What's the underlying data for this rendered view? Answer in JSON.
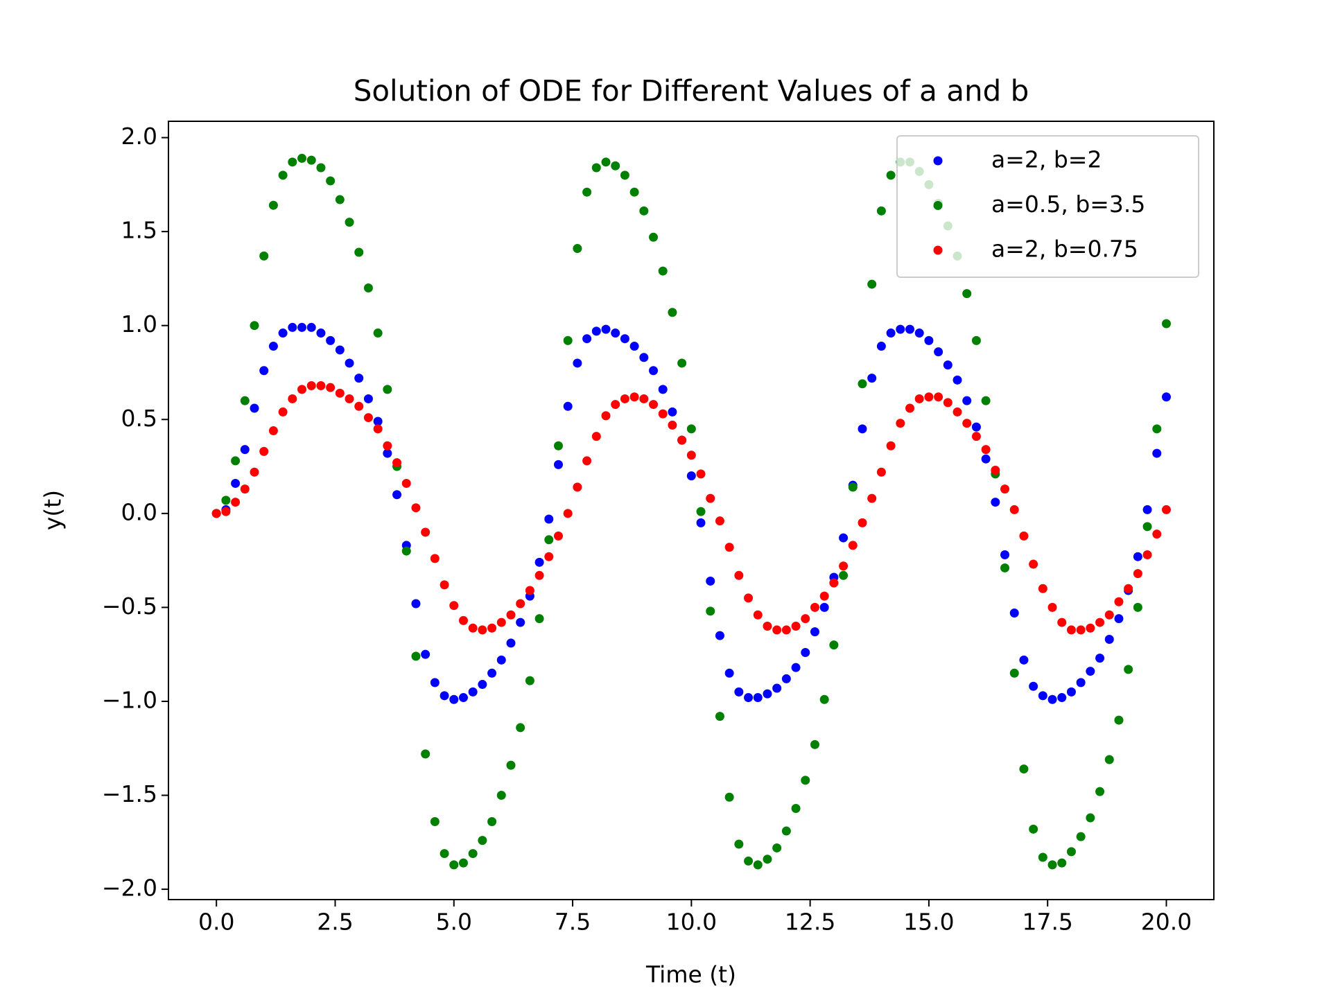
{
  "chart_data": {
    "type": "scatter",
    "title": "Solution of ODE for Different Values of a and b",
    "x_label": "Time (t)",
    "y_label": "y(t)",
    "x": [
      0,
      0.2,
      0.4,
      0.6,
      0.8,
      1.0,
      1.2,
      1.4,
      1.6,
      1.8,
      2.0,
      2.2,
      2.4,
      2.6,
      2.8,
      3.0,
      3.2,
      3.4,
      3.6,
      3.8,
      4.0,
      4.2,
      4.4,
      4.6,
      4.8,
      5.0,
      5.2,
      5.4,
      5.6,
      5.8,
      6.0,
      6.2,
      6.4,
      6.6,
      6.8,
      7.0,
      7.2,
      7.4,
      7.6,
      7.8,
      8.0,
      8.2,
      8.4,
      8.6,
      8.8,
      9.0,
      9.2,
      9.4,
      9.6,
      9.8,
      10.0,
      10.2,
      10.4,
      10.6,
      10.8,
      11.0,
      11.2,
      11.4,
      11.6,
      11.8,
      12.0,
      12.2,
      12.4,
      12.6,
      12.8,
      13.0,
      13.2,
      13.4,
      13.6,
      13.8,
      14.0,
      14.2,
      14.4,
      14.6,
      14.8,
      15.0,
      15.2,
      15.4,
      15.6,
      15.8,
      16.0,
      16.2,
      16.4,
      16.6,
      16.8,
      17.0,
      17.2,
      17.4,
      17.6,
      17.8,
      18.0,
      18.2,
      18.4,
      18.6,
      18.8,
      19.0,
      19.2,
      19.4,
      19.6,
      19.8,
      20.0
    ],
    "series": [
      {
        "name": "a=2, b=2",
        "color": "blue",
        "values": [
          0,
          0.02,
          0.16,
          0.34,
          0.56,
          0.76,
          0.89,
          0.96,
          0.99,
          0.99,
          0.99,
          0.96,
          0.92,
          0.87,
          0.8,
          0.72,
          0.61,
          0.49,
          0.32,
          0.1,
          -0.17,
          -0.48,
          -0.75,
          -0.9,
          -0.97,
          -0.99,
          -0.98,
          -0.95,
          -0.91,
          -0.85,
          -0.78,
          -0.69,
          -0.58,
          -0.44,
          -0.26,
          -0.03,
          0.26,
          0.57,
          0.8,
          0.93,
          0.97,
          0.98,
          0.96,
          0.93,
          0.89,
          0.83,
          0.76,
          0.66,
          0.54,
          0.39,
          0.2,
          -0.05,
          -0.36,
          -0.65,
          -0.85,
          -0.95,
          -0.98,
          -0.98,
          -0.96,
          -0.93,
          -0.88,
          -0.82,
          -0.74,
          -0.63,
          -0.5,
          -0.34,
          -0.13,
          0.15,
          0.45,
          0.72,
          0.89,
          0.96,
          0.98,
          0.98,
          0.96,
          0.92,
          0.86,
          0.79,
          0.71,
          0.6,
          0.46,
          0.29,
          0.06,
          -0.22,
          -0.53,
          -0.78,
          -0.92,
          -0.97,
          -0.99,
          -0.98,
          -0.95,
          -0.9,
          -0.84,
          -0.77,
          -0.67,
          -0.56,
          -0.41,
          -0.23,
          0.02,
          0.32,
          0.62
        ]
      },
      {
        "name": "a=0.5, b=3.5",
        "color": "green",
        "values": [
          0,
          0.07,
          0.28,
          0.6,
          1.0,
          1.37,
          1.64,
          1.8,
          1.87,
          1.89,
          1.88,
          1.84,
          1.77,
          1.67,
          1.55,
          1.39,
          1.2,
          0.96,
          0.66,
          0.25,
          -0.2,
          -0.76,
          -1.28,
          -1.64,
          -1.81,
          -1.87,
          -1.86,
          -1.81,
          -1.74,
          -1.64,
          -1.5,
          -1.34,
          -1.14,
          -0.89,
          -0.56,
          -0.14,
          0.36,
          0.92,
          1.41,
          1.71,
          1.84,
          1.87,
          1.85,
          1.8,
          1.71,
          1.61,
          1.47,
          1.29,
          1.07,
          0.8,
          0.45,
          0.01,
          -0.52,
          -1.08,
          -1.51,
          -1.76,
          -1.85,
          -1.87,
          -1.84,
          -1.78,
          -1.69,
          -1.57,
          -1.42,
          -1.23,
          -0.99,
          -0.7,
          -0.33,
          0.14,
          0.69,
          1.22,
          1.61,
          1.8,
          1.87,
          1.87,
          1.82,
          1.75,
          1.65,
          1.53,
          1.37,
          1.17,
          0.92,
          0.6,
          0.21,
          -0.29,
          -0.85,
          -1.36,
          -1.68,
          -1.83,
          -1.87,
          -1.86,
          -1.8,
          -1.72,
          -1.62,
          -1.48,
          -1.31,
          -1.1,
          -0.83,
          -0.5,
          -0.07,
          0.45,
          1.01
        ]
      },
      {
        "name": "a=2, b=0.75",
        "color": "red",
        "values": [
          0,
          0.01,
          0.06,
          0.13,
          0.22,
          0.33,
          0.44,
          0.54,
          0.61,
          0.66,
          0.68,
          0.68,
          0.67,
          0.64,
          0.61,
          0.57,
          0.51,
          0.45,
          0.36,
          0.27,
          0.16,
          0.03,
          -0.1,
          -0.24,
          -0.38,
          -0.49,
          -0.57,
          -0.61,
          -0.62,
          -0.61,
          -0.58,
          -0.54,
          -0.48,
          -0.41,
          -0.33,
          -0.23,
          -0.12,
          0.0,
          0.14,
          0.28,
          0.41,
          0.52,
          0.58,
          0.61,
          0.62,
          0.61,
          0.58,
          0.53,
          0.47,
          0.39,
          0.31,
          0.21,
          0.08,
          -0.04,
          -0.18,
          -0.33,
          -0.45,
          -0.54,
          -0.6,
          -0.62,
          -0.62,
          -0.6,
          -0.56,
          -0.5,
          -0.44,
          -0.37,
          -0.28,
          -0.17,
          -0.05,
          0.08,
          0.22,
          0.36,
          0.48,
          0.56,
          0.61,
          0.62,
          0.62,
          0.59,
          0.54,
          0.48,
          0.41,
          0.34,
          0.23,
          0.13,
          0.02,
          -0.12,
          -0.27,
          -0.4,
          -0.5,
          -0.58,
          -0.62,
          -0.62,
          -0.61,
          -0.58,
          -0.54,
          -0.47,
          -0.4,
          -0.32,
          -0.22,
          -0.11,
          0.02
        ]
      }
    ],
    "xlim": [
      -1.01,
      21.0
    ],
    "ylim": [
      -2.055,
      2.087
    ],
    "xticks": [
      {
        "value": 0,
        "label": "0.0"
      },
      2.5,
      {
        "value": 5,
        "label": "5.0"
      },
      7.5,
      {
        "value": 10,
        "label": "10.0"
      },
      12.5,
      {
        "value": 15,
        "label": "15.0"
      },
      17.5,
      {
        "value": 20,
        "label": "20.0"
      }
    ],
    "yticks": [
      {
        "value": -2,
        "label": "−2.0"
      },
      {
        "value": -1.5,
        "label": "−1.5"
      },
      {
        "value": -1,
        "label": "−1.0"
      },
      {
        "value": -0.5,
        "label": "−0.5"
      },
      {
        "value": 0,
        "label": "0.0"
      },
      0.5,
      {
        "value": 1,
        "label": "1.0"
      },
      1.5,
      {
        "value": 2,
        "label": "2.0"
      }
    ],
    "grid": false,
    "legend": "upper right"
  }
}
